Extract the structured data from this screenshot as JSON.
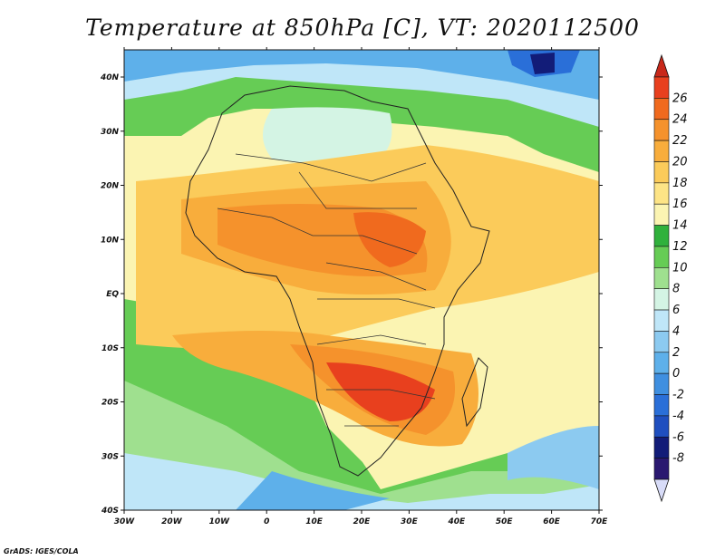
{
  "title": "Temperature at 850hPa [C], VT: 2020112500",
  "footer": "GrADS: IGES/COLA",
  "axes": {
    "lon_labels": [
      "30W",
      "20W",
      "10W",
      "0",
      "10E",
      "20E",
      "30E",
      "40E",
      "50E",
      "60E",
      "70E"
    ],
    "lat_labels": [
      "40N",
      "30N",
      "20N",
      "10N",
      "EQ",
      "10S",
      "20S",
      "30S",
      "40S"
    ]
  },
  "colorbar": {
    "labels": [
      "26",
      "24",
      "22",
      "20",
      "18",
      "16",
      "14",
      "12",
      "10",
      "8",
      "6",
      "4",
      "2",
      "0",
      "-2",
      "-4",
      "-6",
      "-8"
    ],
    "colors": [
      "#e8401e",
      "#f06a1e",
      "#f5922c",
      "#f8ad3c",
      "#fbcb5a",
      "#fde486",
      "#fbf4b2",
      "#30b13c",
      "#66cc55",
      "#9fe08f",
      "#d4f4e4",
      "#bfe6f8",
      "#8ccaf0",
      "#5eb0ea",
      "#3f8fe0",
      "#2a6fd8",
      "#1f4fbf",
      "#121c78",
      "#2a1870"
    ],
    "top_arrow_color": "#c8281a",
    "bottom_arrow_color": "#d8dcf8"
  },
  "map": {
    "ocean_color": "#8ccaf0",
    "land_base_color": "#f8ad3c",
    "border_color": "#222222"
  }
}
